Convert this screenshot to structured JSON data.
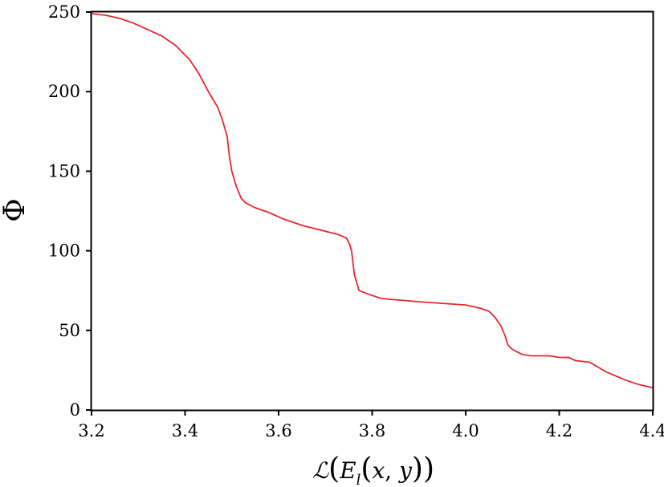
{
  "chart_data": {
    "type": "line",
    "title": "",
    "xlabel": "ℒ(E_l(x,y))",
    "ylabel": "Φ",
    "xlim": [
      3.2,
      4.4
    ],
    "ylim": [
      0,
      250
    ],
    "xticks": [
      3.2,
      3.4,
      3.6,
      3.8,
      4.0,
      4.2,
      4.4
    ],
    "xtick_labels": [
      "3.2",
      "3.4",
      "3.6",
      "3.8",
      "4.0",
      "4.2",
      "4.4"
    ],
    "yticks": [
      0,
      50,
      100,
      150,
      200,
      250
    ],
    "ytick_labels": [
      "0",
      "50",
      "100",
      "150",
      "200",
      "250"
    ],
    "grid": false,
    "series": [
      {
        "color": "#e8262e",
        "x": [
          3.2,
          3.23,
          3.26,
          3.29,
          3.32,
          3.35,
          3.38,
          3.41,
          3.43,
          3.45,
          3.47,
          3.48,
          3.49,
          3.495,
          3.5,
          3.51,
          3.52,
          3.53,
          3.55,
          3.58,
          3.61,
          3.65,
          3.69,
          3.73,
          3.745,
          3.752,
          3.756,
          3.762,
          3.772,
          3.79,
          3.82,
          3.86,
          3.9,
          3.95,
          4.0,
          4.03,
          4.05,
          4.063,
          4.075,
          4.085,
          4.09,
          4.1,
          4.12,
          4.14,
          4.18,
          4.2,
          4.22,
          4.235,
          4.265,
          4.3,
          4.34,
          4.37,
          4.4
        ],
        "y": [
          249,
          248,
          246,
          243,
          239,
          235,
          229,
          220,
          211,
          200,
          190,
          182,
          172,
          159,
          150,
          140,
          133,
          130,
          127,
          124,
          120,
          116,
          113,
          110,
          108,
          104,
          100,
          85,
          75,
          73,
          70,
          69,
          68,
          67,
          66,
          64,
          62,
          58,
          53,
          46,
          41,
          38,
          35,
          34,
          34,
          33,
          33,
          31,
          30,
          24,
          19,
          16,
          14
        ]
      }
    ]
  }
}
